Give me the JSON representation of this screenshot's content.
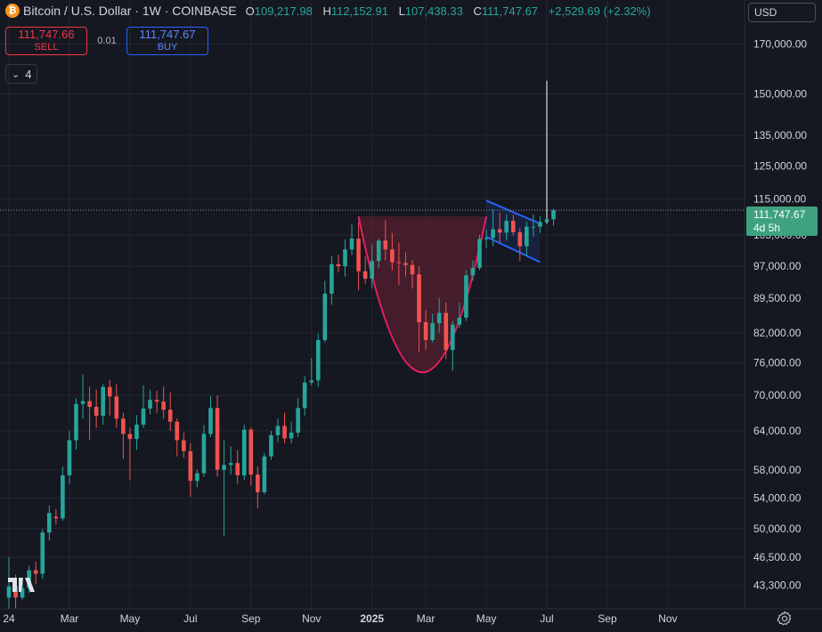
{
  "header": {
    "coin_symbol": "₿",
    "title": "Bitcoin / U.S. Dollar · 1W · COINBASE",
    "ohlc": [
      {
        "k": "O",
        "v": "109,217.98"
      },
      {
        "k": "H",
        "v": "112,152.91"
      },
      {
        "k": "L",
        "v": "107,438.33"
      },
      {
        "k": "C",
        "v": "111,747.67"
      }
    ],
    "change": "+2,529.69 (+2.32%)"
  },
  "trade": {
    "sell_price": "111,747.66",
    "sell_label": "SELL",
    "spread": "0.01",
    "buy_price": "111,747.67",
    "buy_label": "BUY"
  },
  "indicator_badge": {
    "count": "4",
    "chevron": "⌄"
  },
  "currency": "USD",
  "last_price": {
    "value": "111,747.67",
    "countdown": "4d 5h"
  },
  "colors": {
    "up": "#26a69a",
    "down": "#ef5350",
    "bg": "#161821",
    "grid": "#232632",
    "cup_fill": "#6b2035",
    "cup_stroke": "#e91e63",
    "flag": "#2962ff"
  },
  "chart_data": {
    "type": "candlestick",
    "interval": "1W",
    "y_scale": "log",
    "ylim": [
      41000,
      185000
    ],
    "y_ticks": [
      170000,
      150000,
      135000,
      125000,
      115000,
      105000,
      97000,
      89500,
      82000,
      76000,
      70000,
      64000,
      58000,
      54000,
      50000,
      46500,
      43300
    ],
    "y_tick_labels": [
      "170,000.00",
      "150,000.00",
      "135,000.00",
      "125,000.00",
      "115,000.00",
      "105,000.00",
      "97,000.00",
      "89,500.00",
      "82,000.00",
      "76,000.00",
      "70,000.00",
      "64,000.00",
      "58,000.00",
      "54,000.00",
      "50,000.00",
      "46,500.00",
      "43,300.00"
    ],
    "x_labels": [
      "24",
      "Mar",
      "May",
      "Jul",
      "Sep",
      "Nov",
      "2025",
      "Mar",
      "May",
      "Jul",
      "Sep",
      "Nov"
    ],
    "x_label_weeks": [
      0,
      9,
      18,
      27,
      36,
      45,
      54,
      62,
      71,
      80,
      89,
      98
    ],
    "last_week": 81,
    "candles": [
      [
        0,
        42000,
        46500,
        40800,
        43200
      ],
      [
        1,
        43200,
        44500,
        40900,
        42000
      ],
      [
        2,
        42000,
        44000,
        41800,
        43000
      ],
      [
        3,
        43000,
        45500,
        42500,
        45000
      ],
      [
        4,
        45000,
        46000,
        43500,
        44600
      ],
      [
        5,
        44600,
        49900,
        44000,
        49500
      ],
      [
        6,
        49500,
        53000,
        48500,
        52000
      ],
      [
        7,
        51500,
        52500,
        50500,
        51300
      ],
      [
        8,
        51300,
        58500,
        51000,
        57200
      ],
      [
        9,
        57200,
        64000,
        56000,
        62500
      ],
      [
        10,
        62500,
        69500,
        61000,
        68500
      ],
      [
        11,
        68500,
        73800,
        66000,
        69000
      ],
      [
        12,
        69000,
        71500,
        62500,
        68000
      ],
      [
        13,
        68000,
        71000,
        64500,
        66500
      ],
      [
        14,
        66500,
        72000,
        65000,
        71500
      ],
      [
        15,
        71500,
        72800,
        66500,
        69800
      ],
      [
        16,
        69800,
        72000,
        64500,
        66000
      ],
      [
        17,
        66000,
        67000,
        59600,
        63500
      ],
      [
        18,
        63500,
        64500,
        56500,
        62700
      ],
      [
        19,
        62700,
        66600,
        61000,
        65000
      ],
      [
        20,
        65000,
        71800,
        64500,
        67700
      ],
      [
        21,
        67700,
        71000,
        66700,
        69200
      ],
      [
        22,
        69200,
        70800,
        67000,
        68900
      ],
      [
        23,
        68900,
        71600,
        66000,
        67500
      ],
      [
        24,
        67500,
        70500,
        64000,
        65500
      ],
      [
        25,
        65500,
        66000,
        60000,
        62500
      ],
      [
        26,
        62500,
        63700,
        59800,
        60800
      ],
      [
        27,
        60800,
        62000,
        54200,
        56400
      ],
      [
        28,
        56400,
        58000,
        55500,
        57500
      ],
      [
        29,
        57500,
        64900,
        57000,
        63500
      ],
      [
        30,
        63500,
        69900,
        63000,
        67800
      ],
      [
        31,
        67800,
        70000,
        57000,
        58000
      ],
      [
        32,
        58000,
        62500,
        49000,
        58700
      ],
      [
        33,
        58700,
        61500,
        57300,
        59000
      ],
      [
        34,
        59000,
        61000,
        56000,
        57200
      ],
      [
        35,
        57200,
        65000,
        56500,
        64200
      ],
      [
        36,
        64200,
        64500,
        55700,
        57300
      ],
      [
        37,
        57300,
        58500,
        52600,
        54800
      ],
      [
        38,
        54800,
        60500,
        54500,
        60000
      ],
      [
        39,
        60000,
        64000,
        59500,
        63300
      ],
      [
        40,
        63300,
        66000,
        62200,
        64800
      ],
      [
        41,
        64800,
        67000,
        62000,
        62800
      ],
      [
        42,
        62800,
        65500,
        62000,
        63700
      ],
      [
        43,
        63700,
        69500,
        63000,
        67800
      ],
      [
        44,
        67800,
        73500,
        66500,
        72300
      ],
      [
        45,
        72300,
        76900,
        71800,
        72700
      ],
      [
        46,
        72700,
        81800,
        71500,
        80500
      ],
      [
        47,
        80500,
        93500,
        80000,
        90500
      ],
      [
        48,
        90500,
        99500,
        88000,
        97500
      ],
      [
        49,
        97500,
        99800,
        95500,
        97000
      ],
      [
        50,
        97000,
        103800,
        94500,
        101200
      ],
      [
        51,
        101200,
        107800,
        99800,
        104000
      ],
      [
        52,
        104000,
        108500,
        91300,
        95800
      ],
      [
        53,
        95800,
        99500,
        92800,
        94000
      ],
      [
        54,
        94000,
        102500,
        91800,
        98300
      ],
      [
        55,
        98300,
        104000,
        96500,
        103500
      ],
      [
        56,
        103500,
        109000,
        98500,
        101200
      ],
      [
        57,
        101200,
        105500,
        96000,
        98000
      ],
      [
        58,
        98000,
        103000,
        92500,
        97800
      ],
      [
        59,
        97800,
        100500,
        94500,
        97300
      ],
      [
        60,
        97300,
        98500,
        91700,
        95000
      ],
      [
        61,
        95000,
        97000,
        78200,
        84200
      ],
      [
        62,
        84200,
        86800,
        78500,
        80500
      ],
      [
        63,
        80500,
        86000,
        80000,
        84000
      ],
      [
        64,
        84000,
        89500,
        82000,
        86200
      ],
      [
        65,
        86200,
        88500,
        76700,
        78500
      ],
      [
        66,
        78500,
        84500,
        74500,
        83700
      ],
      [
        67,
        83700,
        88500,
        83000,
        85200
      ],
      [
        68,
        85200,
        96000,
        84500,
        94800
      ],
      [
        69,
        94800,
        98500,
        93500,
        96600
      ],
      [
        70,
        96600,
        105000,
        96000,
        103900
      ],
      [
        71,
        103900,
        106500,
        101500,
        104200
      ],
      [
        72,
        104200,
        112000,
        102000,
        106500
      ],
      [
        73,
        106500,
        111000,
        103000,
        105600
      ],
      [
        74,
        105600,
        110500,
        103500,
        108800
      ],
      [
        75,
        108800,
        110500,
        104800,
        105700
      ],
      [
        76,
        105700,
        106800,
        98300,
        102000
      ],
      [
        77,
        102000,
        108500,
        99500,
        107200
      ],
      [
        78,
        107200,
        110500,
        104500,
        107200
      ],
      [
        79,
        107200,
        110000,
        105500,
        108500
      ],
      [
        80,
        108500,
        155000,
        108000,
        109200
      ],
      [
        81,
        109200,
        112150,
        107440,
        111748
      ]
    ],
    "pattern_overlays": [
      {
        "type": "cup",
        "from_week": 52,
        "to_week": 71,
        "rim_price": 110000,
        "bottom_price": 74200
      },
      {
        "type": "flag_channel",
        "upper": [
          [
            71,
            114500
          ],
          [
            79,
            108000
          ]
        ],
        "lower": [
          [
            71,
            104500
          ],
          [
            79,
            98000
          ]
        ]
      }
    ]
  }
}
